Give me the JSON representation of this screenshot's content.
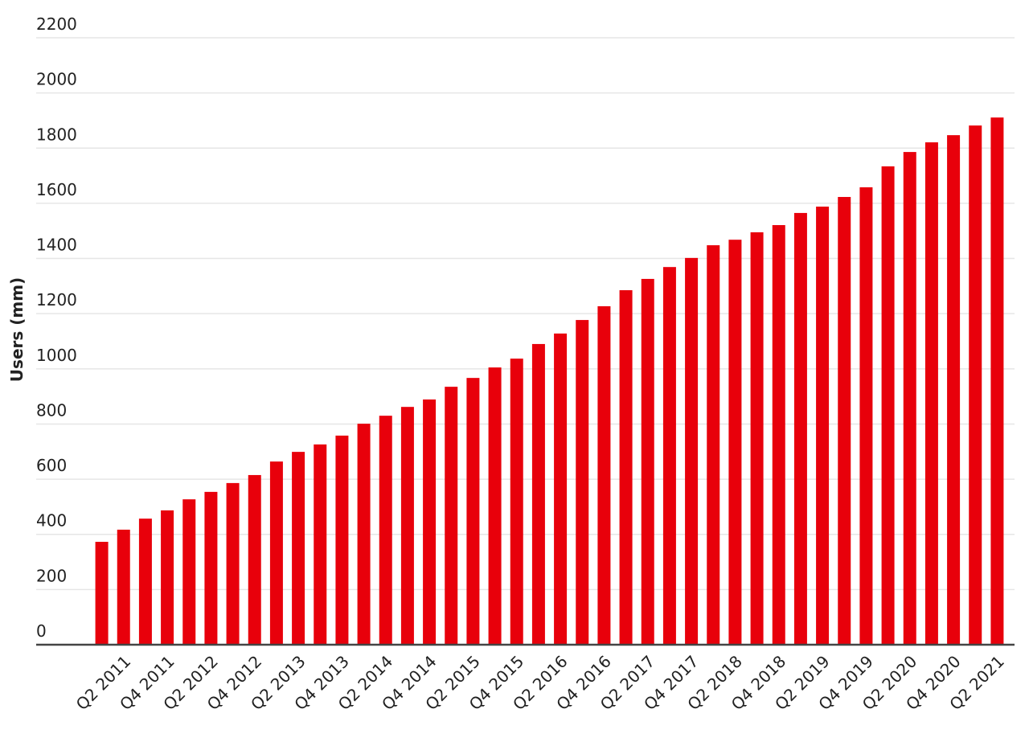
{
  "chart_data": {
    "type": "bar",
    "y_label": "Users (mm)",
    "categories": [
      null,
      "Q2 2011",
      null,
      "Q4 2011",
      null,
      "Q2 2012",
      null,
      "Q4 2012",
      null,
      "Q2 2013",
      null,
      "Q4 2013",
      null,
      "Q2 2014",
      null,
      "Q4 2014",
      null,
      "Q2 2015",
      null,
      "Q4 2015",
      null,
      "Q2 2016",
      null,
      "Q4 2016",
      null,
      "Q2 2017",
      null,
      "Q4 2017",
      null,
      "Q2 2018",
      null,
      "Q4 2018",
      null,
      "Q2 2019",
      null,
      "Q4 2019",
      null,
      "Q2 2020",
      null,
      "Q4 2020",
      null,
      "Q2 2021"
    ],
    "values": [
      373,
      417,
      457,
      487,
      527,
      554,
      586,
      615,
      664,
      699,
      726,
      758,
      801,
      830,
      862,
      889,
      935,
      967,
      1005,
      1037,
      1090,
      1128,
      1177,
      1227,
      1285,
      1326,
      1369,
      1402,
      1448,
      1468,
      1495,
      1521,
      1565,
      1588,
      1623,
      1658,
      1734,
      1786,
      1821,
      1847,
      1882,
      1911
    ],
    "color": "#e8000b",
    "ylim": [
      0,
      2200
    ],
    "yticks": [
      0,
      200,
      400,
      600,
      800,
      1000,
      1200,
      1400,
      1600,
      1800,
      2000,
      2200
    ],
    "grid": true
  }
}
